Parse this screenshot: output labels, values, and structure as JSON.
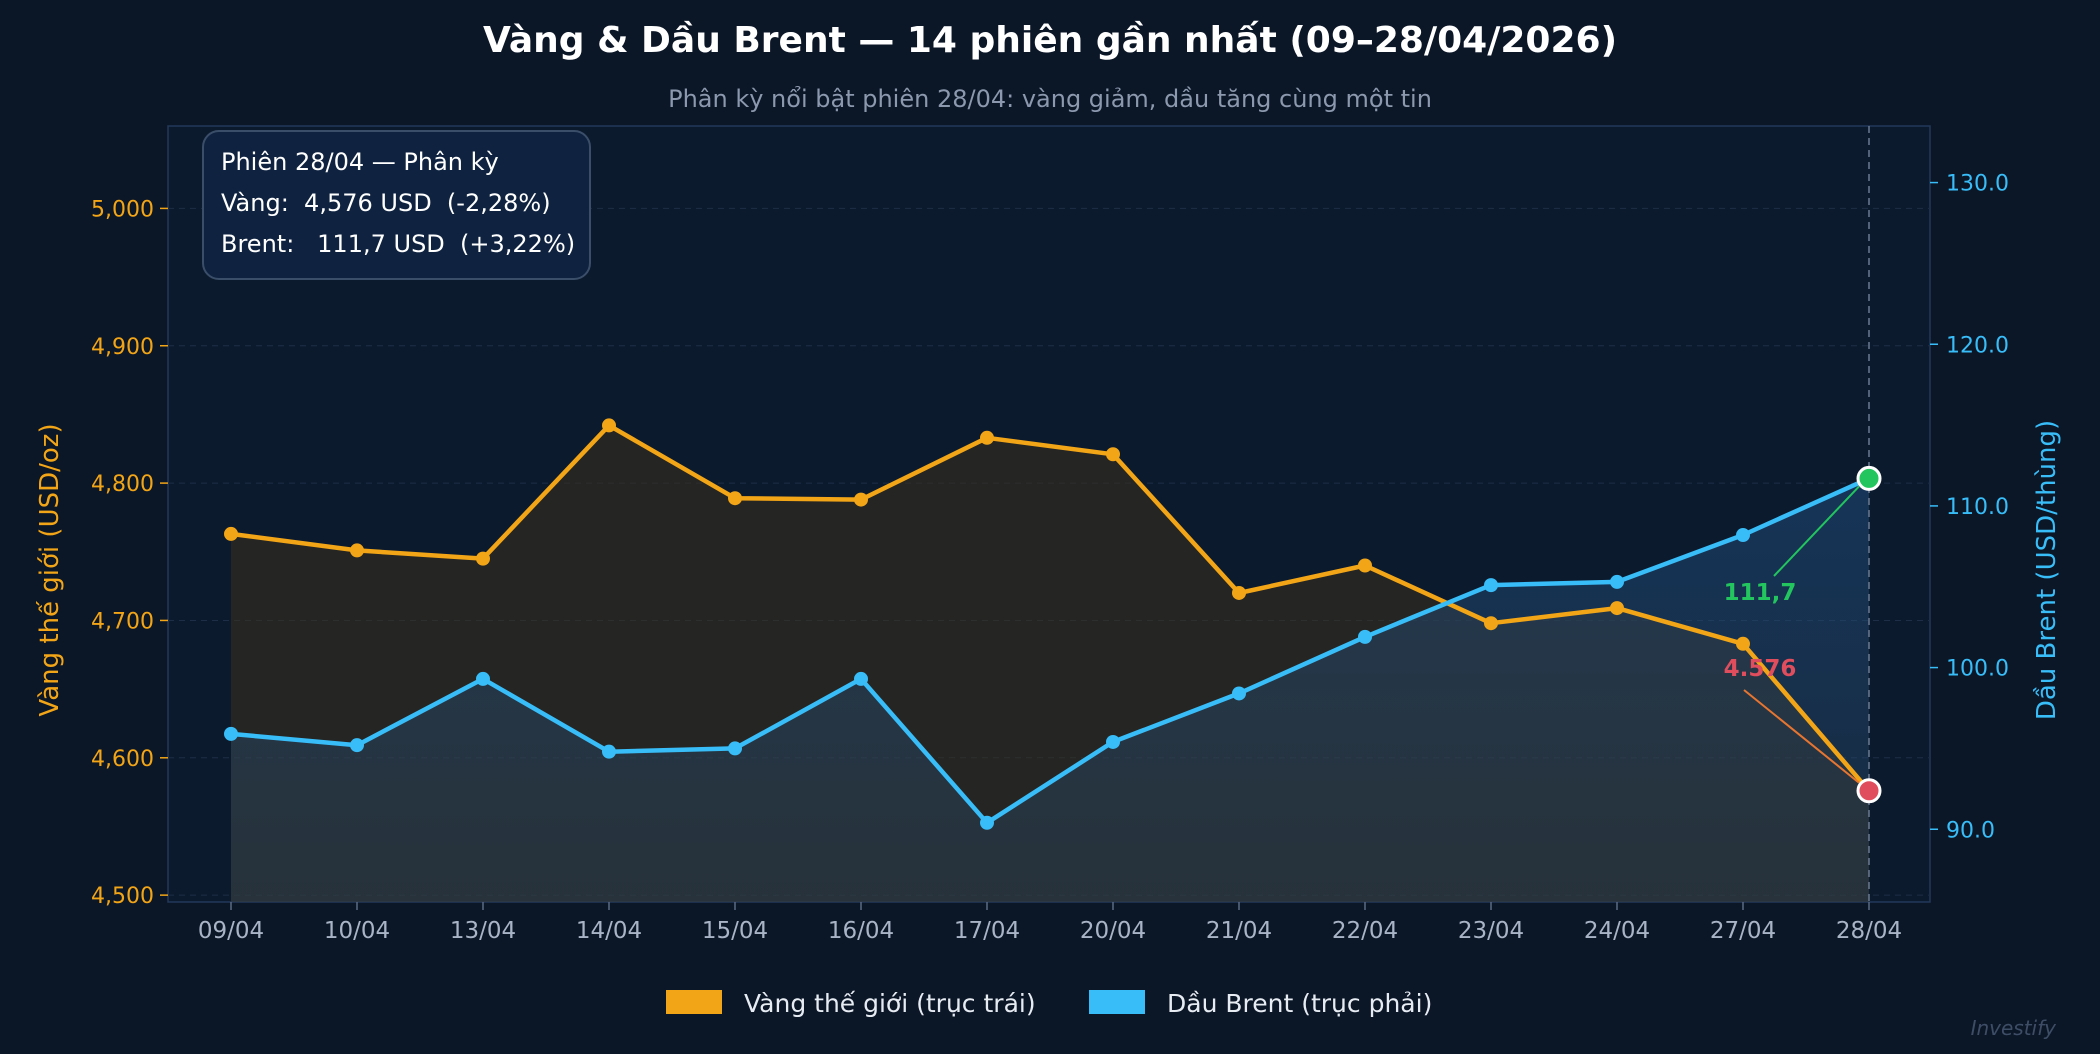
{
  "colors": {
    "background": "#0b1627",
    "gold": "#f2a516",
    "brent": "#38bdf8",
    "up": "#22c55e",
    "down": "#e04e5e",
    "title": "#ffffff",
    "subtitle": "#8b98ad",
    "tick": "#a9b4c6"
  },
  "watermark": "Investify",
  "chart_data": {
    "type": "line",
    "title": "Vàng & Dầu Brent — 14 phiên gần nhất (09–28/04/2026)",
    "subtitle": "Phân kỳ nổi bật phiên 28/04: vàng giảm, dầu tăng cùng một tin",
    "categories": [
      "09/04",
      "10/04",
      "13/04",
      "14/04",
      "15/04",
      "16/04",
      "17/04",
      "20/04",
      "21/04",
      "22/04",
      "23/04",
      "24/04",
      "27/04",
      "28/04"
    ],
    "ylabel_left": "Vàng thế giới (USD/oz)",
    "ylabel_right": "Dầu Brent (USD/thùng)",
    "ylim_left": [
      4495,
      5060
    ],
    "ylim_right": [
      85.5,
      133.5
    ],
    "yticks_left": [
      "4,500",
      "4,600",
      "4,700",
      "4,800",
      "4,900",
      "5,000"
    ],
    "yticks_left_values": [
      4500,
      4600,
      4700,
      4800,
      4900,
      5000
    ],
    "yticks_right": [
      "90.0",
      "100.0",
      "110.0",
      "120.0",
      "130.0"
    ],
    "yticks_right_values": [
      90,
      100,
      110,
      120,
      130
    ],
    "grid": true,
    "legend_position": "bottom-center",
    "series": [
      {
        "name": "Vàng thế giới (trục trái)",
        "axis": "left",
        "values": [
          4763,
          4751,
          4745,
          4842,
          4789,
          4788,
          4833,
          4821,
          4720,
          4740,
          4698,
          4709,
          4683,
          4576
        ]
      },
      {
        "name": "Dầu Brent (trục phải)",
        "axis": "right",
        "values": [
          95.9,
          95.2,
          99.3,
          94.8,
          95.0,
          99.3,
          90.4,
          95.4,
          98.4,
          101.9,
          105.1,
          105.3,
          108.2,
          111.7
        ]
      }
    ],
    "info_box": {
      "line1": "Phiên 28/04 — Phân kỳ",
      "line2": "Vàng:  4,576 USD  (-2,28%)",
      "line3": "Brent:   111,7 USD  (+3,22%)"
    },
    "annotations": {
      "brent_last": "111,7",
      "gold_last": "4.576"
    }
  }
}
